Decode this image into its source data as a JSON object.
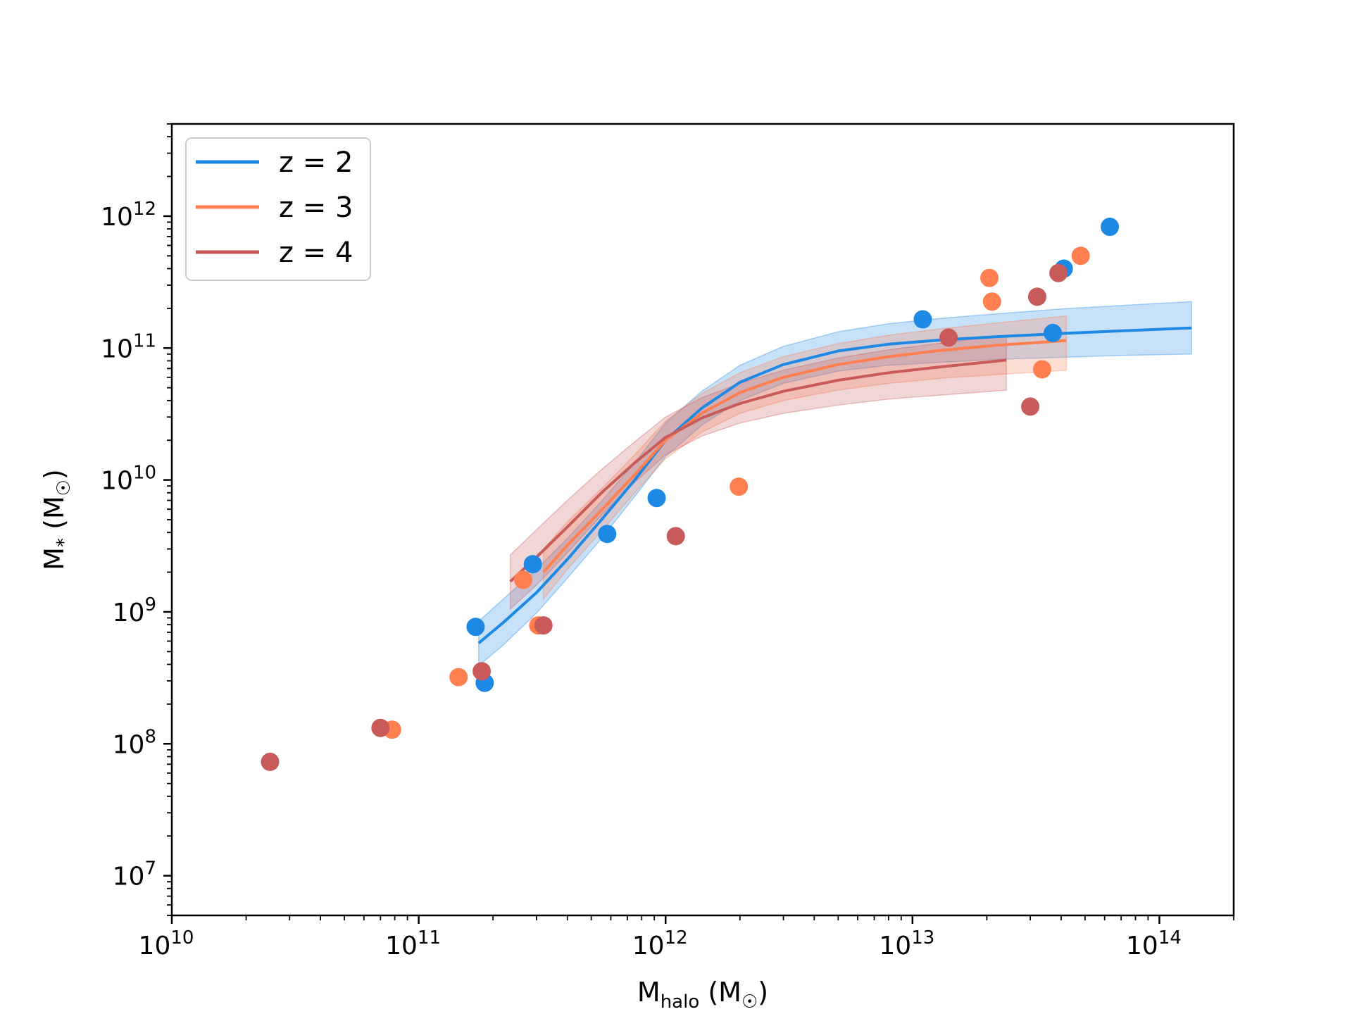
{
  "chart_data": {
    "type": "scatter",
    "title": "",
    "xlabel": {
      "base": "M",
      "sub": "halo",
      "unit": " (M",
      "sun": "☉",
      "close": ")"
    },
    "ylabel": {
      "base": "M",
      "sub": "*",
      "unit": " (M",
      "sun": "☉",
      "close": ")"
    },
    "xscale": "log",
    "yscale": "log",
    "xlim": [
      10000000000.0,
      200000000000000.0
    ],
    "ylim": [
      5000000.0,
      5000000000000.0
    ],
    "xticks": [
      {
        "value": 10000000000.0,
        "base": "10",
        "exp": "10"
      },
      {
        "value": 100000000000.0,
        "base": "10",
        "exp": "11"
      },
      {
        "value": 1000000000000.0,
        "base": "10",
        "exp": "12"
      },
      {
        "value": 10000000000000.0,
        "base": "10",
        "exp": "13"
      },
      {
        "value": 100000000000000.0,
        "base": "10",
        "exp": "14"
      }
    ],
    "yticks": [
      {
        "value": 10000000.0,
        "base": "10",
        "exp": "7"
      },
      {
        "value": 100000000.0,
        "base": "10",
        "exp": "8"
      },
      {
        "value": 1000000000.0,
        "base": "10",
        "exp": "9"
      },
      {
        "value": 10000000000.0,
        "base": "10",
        "exp": "10"
      },
      {
        "value": 100000000000.0,
        "base": "10",
        "exp": "11"
      },
      {
        "value": 1000000000000.0,
        "base": "10",
        "exp": "12"
      }
    ],
    "grid": false,
    "legend_position": "upper-left",
    "series": [
      {
        "name": "z = 2",
        "color": "#1e88e5",
        "line": {
          "x": [
            175000000000.0,
            220000000000.0,
            300000000000.0,
            400000000000.0,
            550000000000.0,
            750000000000.0,
            1000000000000.0,
            1400000000000.0,
            2000000000000.0,
            3000000000000.0,
            5000000000000.0,
            8000000000000.0,
            13000000000000.0,
            22000000000000.0,
            40000000000000.0,
            70000000000000.0,
            135000000000000.0
          ],
          "y": [
            580000000.0,
            830000000.0,
            1400000000.0,
            2500000000.0,
            5000000000.0,
            10000000000.0,
            20000000000.0,
            35000000000.0,
            55000000000.0,
            75000000000.0,
            95000000000.0,
            107000000000.0,
            115000000000.0,
            122000000000.0,
            129000000000.0,
            135000000000.0,
            142000000000.0
          ]
        },
        "band": {
          "x": [
            175000000000.0,
            220000000000.0,
            300000000000.0,
            400000000000.0,
            550000000000.0,
            750000000000.0,
            1000000000000.0,
            1400000000000.0,
            2000000000000.0,
            3000000000000.0,
            5000000000000.0,
            8000000000000.0,
            13000000000000.0,
            22000000000000.0,
            40000000000000.0,
            70000000000000.0,
            135000000000000.0
          ],
          "lower": [
            390000000.0,
            560000000.0,
            980000000.0,
            1800000000.0,
            3600000000.0,
            7500000000.0,
            15000000000.0,
            26000000000.0,
            40000000000.0,
            54000000000.0,
            67000000000.0,
            74000000000.0,
            78000000000.0,
            82000000000.0,
            85000000000.0,
            88000000000.0,
            90000000000.0
          ],
          "upper": [
            850000000.0,
            1250000000.0,
            2100000000.0,
            3600000000.0,
            6900000000.0,
            13500000000.0,
            27000000000.0,
            47000000000.0,
            74000000000.0,
            103000000000.0,
            133000000000.0,
            153000000000.0,
            168000000000.0,
            182000000000.0,
            198000000000.0,
            210000000000.0,
            225000000000.0
          ]
        },
        "points": {
          "x": [
            170000000000.0,
            185000000000.0,
            290000000000.0,
            580000000000.0,
            920000000000.0,
            11000000000000.0,
            37000000000000.0,
            41000000000000.0,
            63000000000000.0
          ],
          "y": [
            770000000.0,
            290000000.0,
            2300000000.0,
            3900000000.0,
            7300000000.0,
            165000000000.0,
            130000000000.0,
            400000000000.0,
            830000000000.0
          ]
        }
      },
      {
        "name": "z = 3",
        "color": "#ff7f50",
        "line": {
          "x": [
            320000000000.0,
            400000000000.0,
            550000000000.0,
            750000000000.0,
            1000000000000.0,
            1400000000000.0,
            2000000000000.0,
            3000000000000.0,
            5000000000000.0,
            8000000000000.0,
            13000000000000.0,
            22000000000000.0,
            42000000000000.0
          ],
          "y": [
            2000000000.0,
            3200000000.0,
            5900000000.0,
            11000000000.0,
            20000000000.0,
            32000000000.0,
            46000000000.0,
            60000000000.0,
            75000000000.0,
            86000000000.0,
            96000000000.0,
            105000000000.0,
            114000000000.0
          ]
        },
        "band": {
          "x": [
            320000000000.0,
            400000000000.0,
            550000000000.0,
            750000000000.0,
            1000000000000.0,
            1400000000000.0,
            2000000000000.0,
            3000000000000.0,
            5000000000000.0,
            8000000000000.0,
            13000000000000.0,
            22000000000000.0,
            42000000000000.0
          ],
          "lower": [
            1250000000.0,
            2100000000.0,
            4100000000.0,
            8000000000.0,
            14500000000.0,
            23000000000.0,
            32000000000.0,
            40000000000.0,
            48000000000.0,
            54000000000.0,
            59000000000.0,
            63000000000.0,
            68000000000.0
          ],
          "upper": [
            3000000000.0,
            4800000000.0,
            8600000000.0,
            15500000000.0,
            28000000000.0,
            45000000000.0,
            65000000000.0,
            86000000000.0,
            108000000000.0,
            125000000000.0,
            140000000000.0,
            155000000000.0,
            175000000000.0
          ]
        },
        "points": {
          "x": [
            78000000000.0,
            145000000000.0,
            265000000000.0,
            305000000000.0,
            1980000000000.0,
            20500000000000.0,
            21000000000000.0,
            33500000000000.0,
            48000000000000.0
          ],
          "y": [
            128000000.0,
            320000000.0,
            1750000000.0,
            790000000.0,
            8900000000.0,
            340000000000.0,
            225000000000.0,
            69000000000.0,
            500000000000.0
          ]
        }
      },
      {
        "name": "z = 4",
        "color": "#c85a5a",
        "line": {
          "x": [
            235000000000.0,
            300000000000.0,
            400000000000.0,
            550000000000.0,
            750000000000.0,
            1000000000000.0,
            1400000000000.0,
            2000000000000.0,
            3000000000000.0,
            5000000000000.0,
            8000000000000.0,
            13000000000000.0,
            24000000000000.0
          ],
          "y": [
            1700000000.0,
            2600000000.0,
            4400000000.0,
            8000000000.0,
            13500000000.0,
            21000000000.0,
            29500000000.0,
            38000000000.0,
            47000000000.0,
            57000000000.0,
            65000000000.0,
            72000000000.0,
            81000000000.0
          ]
        },
        "band": {
          "x": [
            235000000000.0,
            300000000000.0,
            400000000000.0,
            550000000000.0,
            750000000000.0,
            1000000000000.0,
            1400000000000.0,
            2000000000000.0,
            3000000000000.0,
            5000000000000.0,
            8000000000000.0,
            13000000000000.0,
            24000000000000.0
          ],
          "lower": [
            1050000000.0,
            1600000000.0,
            2800000000.0,
            5400000000.0,
            9600000000.0,
            15500000000.0,
            21500000000.0,
            27000000000.0,
            32000000000.0,
            37000000000.0,
            41000000000.0,
            44000000000.0,
            48000000000.0
          ],
          "upper": [
            2700000000.0,
            4200000000.0,
            7000000000.0,
            12000000000.0,
            19500000000.0,
            30000000000.0,
            42000000000.0,
            54000000000.0,
            68000000000.0,
            84000000000.0,
            97000000000.0,
            109000000000.0,
            125000000000.0
          ]
        },
        "points": {
          "x": [
            25000000000.0,
            70000000000.0,
            180000000000.0,
            320000000000.0,
            1100000000000.0,
            14000000000000.0,
            30000000000000.0,
            32000000000000.0,
            39000000000000.0
          ],
          "y": [
            73000000.0,
            132000000.0,
            355000000.0,
            790000000.0,
            3750000000.0,
            120000000000.0,
            36000000000.0,
            245000000000.0,
            370000000000.0
          ]
        }
      }
    ]
  }
}
